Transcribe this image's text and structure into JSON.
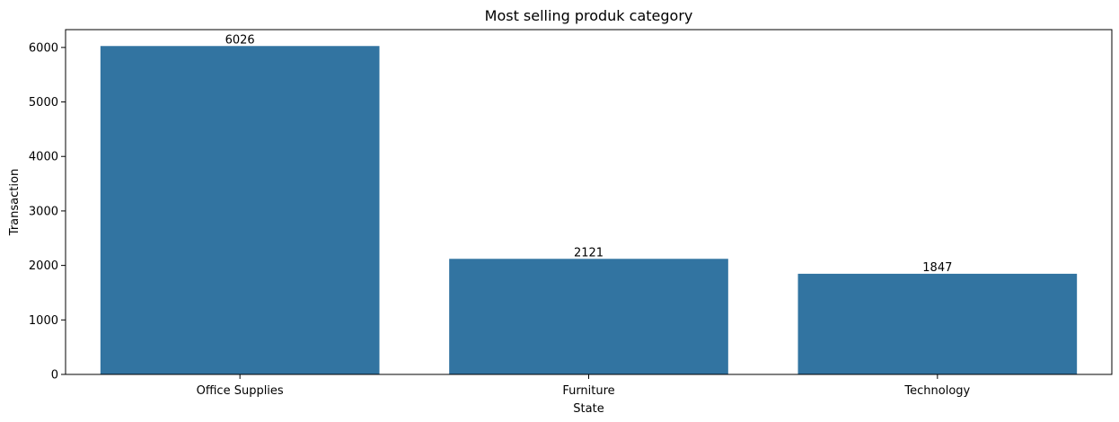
{
  "chart_data": {
    "type": "bar",
    "title": "Most selling produk category",
    "xlabel": "State",
    "ylabel": "Transaction",
    "categories": [
      "Office Supplies",
      "Furniture",
      "Technology"
    ],
    "values": [
      6026,
      2121,
      1847
    ],
    "data_labels": [
      "6026",
      "2121",
      "1847"
    ],
    "ylim": [
      0,
      6327
    ],
    "yticks": [
      0,
      1000,
      2000,
      3000,
      4000,
      5000,
      6000
    ],
    "bar_color": "#3274a1",
    "grid": false,
    "legend": "none"
  }
}
